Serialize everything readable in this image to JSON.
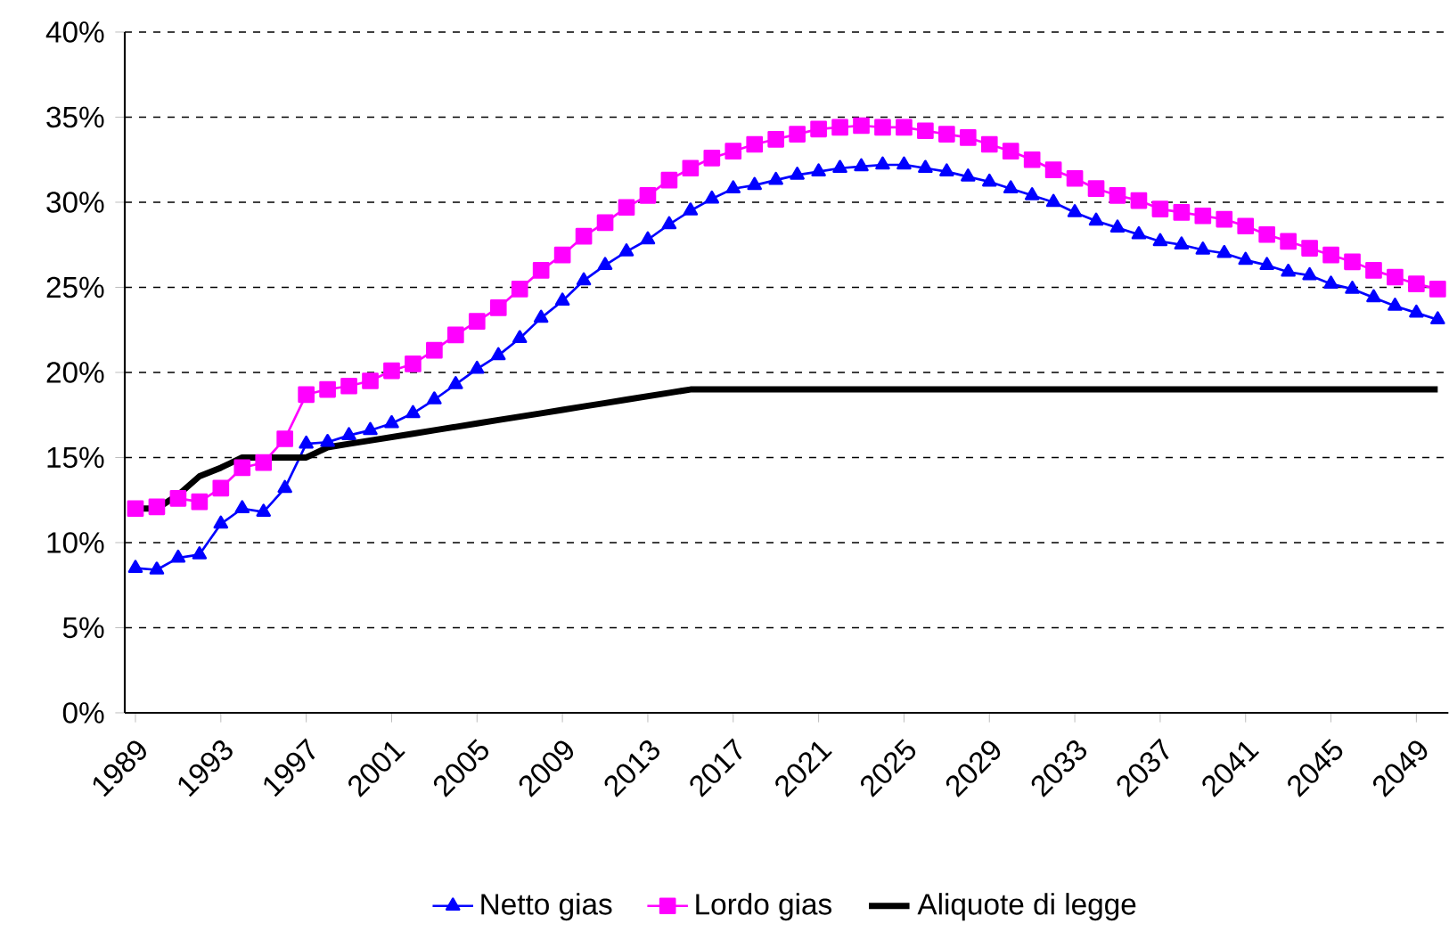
{
  "chart_data": {
    "type": "line",
    "categories": [
      "1989",
      null,
      null,
      null,
      "1993",
      null,
      null,
      null,
      "1997",
      null,
      null,
      null,
      "2001",
      null,
      null,
      null,
      "2005",
      null,
      null,
      null,
      "2009",
      null,
      null,
      null,
      "2013",
      null,
      null,
      null,
      "2017",
      null,
      null,
      null,
      "2021",
      null,
      null,
      null,
      "2025",
      null,
      null,
      null,
      "2029",
      null,
      null,
      null,
      "2033",
      null,
      null,
      null,
      "2037",
      null,
      null,
      null,
      "2041",
      null,
      null,
      null,
      "2045",
      null,
      null,
      null,
      "2049",
      null
    ],
    "series": [
      {
        "name": "Netto gias",
        "color": "#0000ff",
        "marker": "triangle",
        "values": [
          8.5,
          8.4,
          9.1,
          9.3,
          11.1,
          12.0,
          11.8,
          13.2,
          15.8,
          15.9,
          16.3,
          16.6,
          17.0,
          17.6,
          18.4,
          19.3,
          20.2,
          21.0,
          22.0,
          23.2,
          24.2,
          25.4,
          26.3,
          27.1,
          27.8,
          28.7,
          29.5,
          30.2,
          30.8,
          31.0,
          31.3,
          31.6,
          31.8,
          32.0,
          32.1,
          32.2,
          32.2,
          32.0,
          31.8,
          31.5,
          31.2,
          30.8,
          30.4,
          30.0,
          29.4,
          28.9,
          28.5,
          28.1,
          27.7,
          27.5,
          27.2,
          27.0,
          26.6,
          26.3,
          25.9,
          25.7,
          25.2,
          24.9,
          24.4,
          23.9,
          23.5,
          23.1
        ]
      },
      {
        "name": "Lordo gias",
        "color": "#ff00ff",
        "marker": "square",
        "values": [
          12.0,
          12.1,
          12.6,
          12.4,
          13.2,
          14.4,
          14.7,
          16.1,
          18.7,
          19.0,
          19.2,
          19.5,
          20.1,
          20.5,
          21.3,
          22.2,
          23.0,
          23.8,
          24.9,
          26.0,
          26.9,
          28.0,
          28.8,
          29.7,
          30.4,
          31.3,
          32.0,
          32.6,
          33.0,
          33.4,
          33.7,
          34.0,
          34.3,
          34.4,
          34.5,
          34.4,
          34.4,
          34.2,
          34.0,
          33.8,
          33.4,
          33.0,
          32.5,
          31.9,
          31.4,
          30.8,
          30.4,
          30.1,
          29.6,
          29.4,
          29.2,
          29.0,
          28.6,
          28.1,
          27.7,
          27.3,
          26.9,
          26.5,
          26.0,
          25.6,
          25.2,
          24.9
        ]
      },
      {
        "name": "Aliquote di legge",
        "color": "#000000",
        "marker": "none",
        "values": [
          12.0,
          12.0,
          12.8,
          13.9,
          14.4,
          15.0,
          15.0,
          15.0,
          15.0,
          15.6,
          15.8,
          16.0,
          16.2,
          16.4,
          16.6,
          16.8,
          17.0,
          17.2,
          17.4,
          17.6,
          17.8,
          18.0,
          18.2,
          18.4,
          18.6,
          18.8,
          19.0,
          19.0,
          19.0,
          19.0,
          19.0,
          19.0,
          19.0,
          19.0,
          19.0,
          19.0,
          19.0,
          19.0,
          19.0,
          19.0,
          19.0,
          19.0,
          19.0,
          19.0,
          19.0,
          19.0,
          19.0,
          19.0,
          19.0,
          19.0,
          19.0,
          19.0,
          19.0,
          19.0,
          19.0,
          19.0,
          19.0,
          19.0,
          19.0,
          19.0,
          19.0,
          19.0
        ]
      }
    ],
    "ylim": [
      0,
      40
    ],
    "yticks": [
      {
        "value": 0,
        "label": "0%"
      },
      {
        "value": 5,
        "label": "5%"
      },
      {
        "value": 10,
        "label": "10%"
      },
      {
        "value": 15,
        "label": "15%"
      },
      {
        "value": 20,
        "label": "20%"
      },
      {
        "value": 25,
        "label": "25%"
      },
      {
        "value": 30,
        "label": "30%"
      },
      {
        "value": 35,
        "label": "35%"
      },
      {
        "value": 40,
        "label": "40%"
      }
    ],
    "grid": "y",
    "line_style": "solid",
    "legend": "bottom"
  }
}
